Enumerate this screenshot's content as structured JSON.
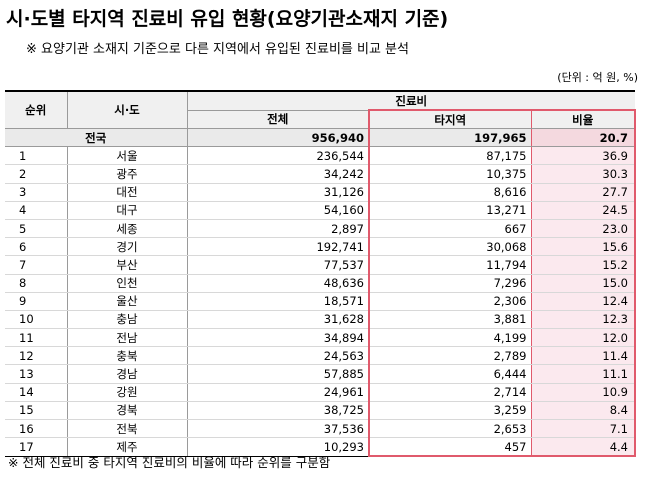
{
  "title": "시·도별 타지역 진료비 유입 현황(요양기관소재지 기준)",
  "note": "※ 요양기관 소재지 기준으로 다른 지역에서 유입된 진료비를 비교 분석",
  "unit": "(단위 : 억 원, %)",
  "headers": {
    "rank": "순위",
    "region": "시·도",
    "group": "진료비",
    "total": "전체",
    "other": "타지역",
    "ratio": "비율"
  },
  "national": {
    "label": "전국",
    "total": "956,940",
    "other": "197,965",
    "ratio": "20.7"
  },
  "rows": [
    {
      "rank": "1",
      "region": "서울",
      "total": "236,544",
      "other": "87,175",
      "ratio": "36.9"
    },
    {
      "rank": "2",
      "region": "광주",
      "total": "34,242",
      "other": "10,375",
      "ratio": "30.3"
    },
    {
      "rank": "3",
      "region": "대전",
      "total": "31,126",
      "other": "8,616",
      "ratio": "27.7"
    },
    {
      "rank": "4",
      "region": "대구",
      "total": "54,160",
      "other": "13,271",
      "ratio": "24.5"
    },
    {
      "rank": "5",
      "region": "세종",
      "total": "2,897",
      "other": "667",
      "ratio": "23.0"
    },
    {
      "rank": "6",
      "region": "경기",
      "total": "192,741",
      "other": "30,068",
      "ratio": "15.6"
    },
    {
      "rank": "7",
      "region": "부산",
      "total": "77,537",
      "other": "11,794",
      "ratio": "15.2"
    },
    {
      "rank": "8",
      "region": "인천",
      "total": "48,636",
      "other": "7,296",
      "ratio": "15.0"
    },
    {
      "rank": "9",
      "region": "울산",
      "total": "18,571",
      "other": "2,306",
      "ratio": "12.4"
    },
    {
      "rank": "10",
      "region": "충남",
      "total": "31,628",
      "other": "3,881",
      "ratio": "12.3"
    },
    {
      "rank": "11",
      "region": "전남",
      "total": "34,894",
      "other": "4,199",
      "ratio": "12.0"
    },
    {
      "rank": "12",
      "region": "충북",
      "total": "24,563",
      "other": "2,789",
      "ratio": "11.4"
    },
    {
      "rank": "13",
      "region": "경남",
      "total": "57,885",
      "other": "6,444",
      "ratio": "11.1"
    },
    {
      "rank": "14",
      "region": "강원",
      "total": "24,961",
      "other": "2,714",
      "ratio": "10.9"
    },
    {
      "rank": "15",
      "region": "경북",
      "total": "38,725",
      "other": "3,259",
      "ratio": "8.4"
    },
    {
      "rank": "16",
      "region": "전북",
      "total": "37,536",
      "other": "2,653",
      "ratio": "7.1"
    },
    {
      "rank": "17",
      "region": "제주",
      "total": "10,293",
      "other": "457",
      "ratio": "4.4"
    }
  ],
  "footnote": "※ 전체 진료비 중 타지역 진료비의 비율에 따라 순위를 구분함"
}
